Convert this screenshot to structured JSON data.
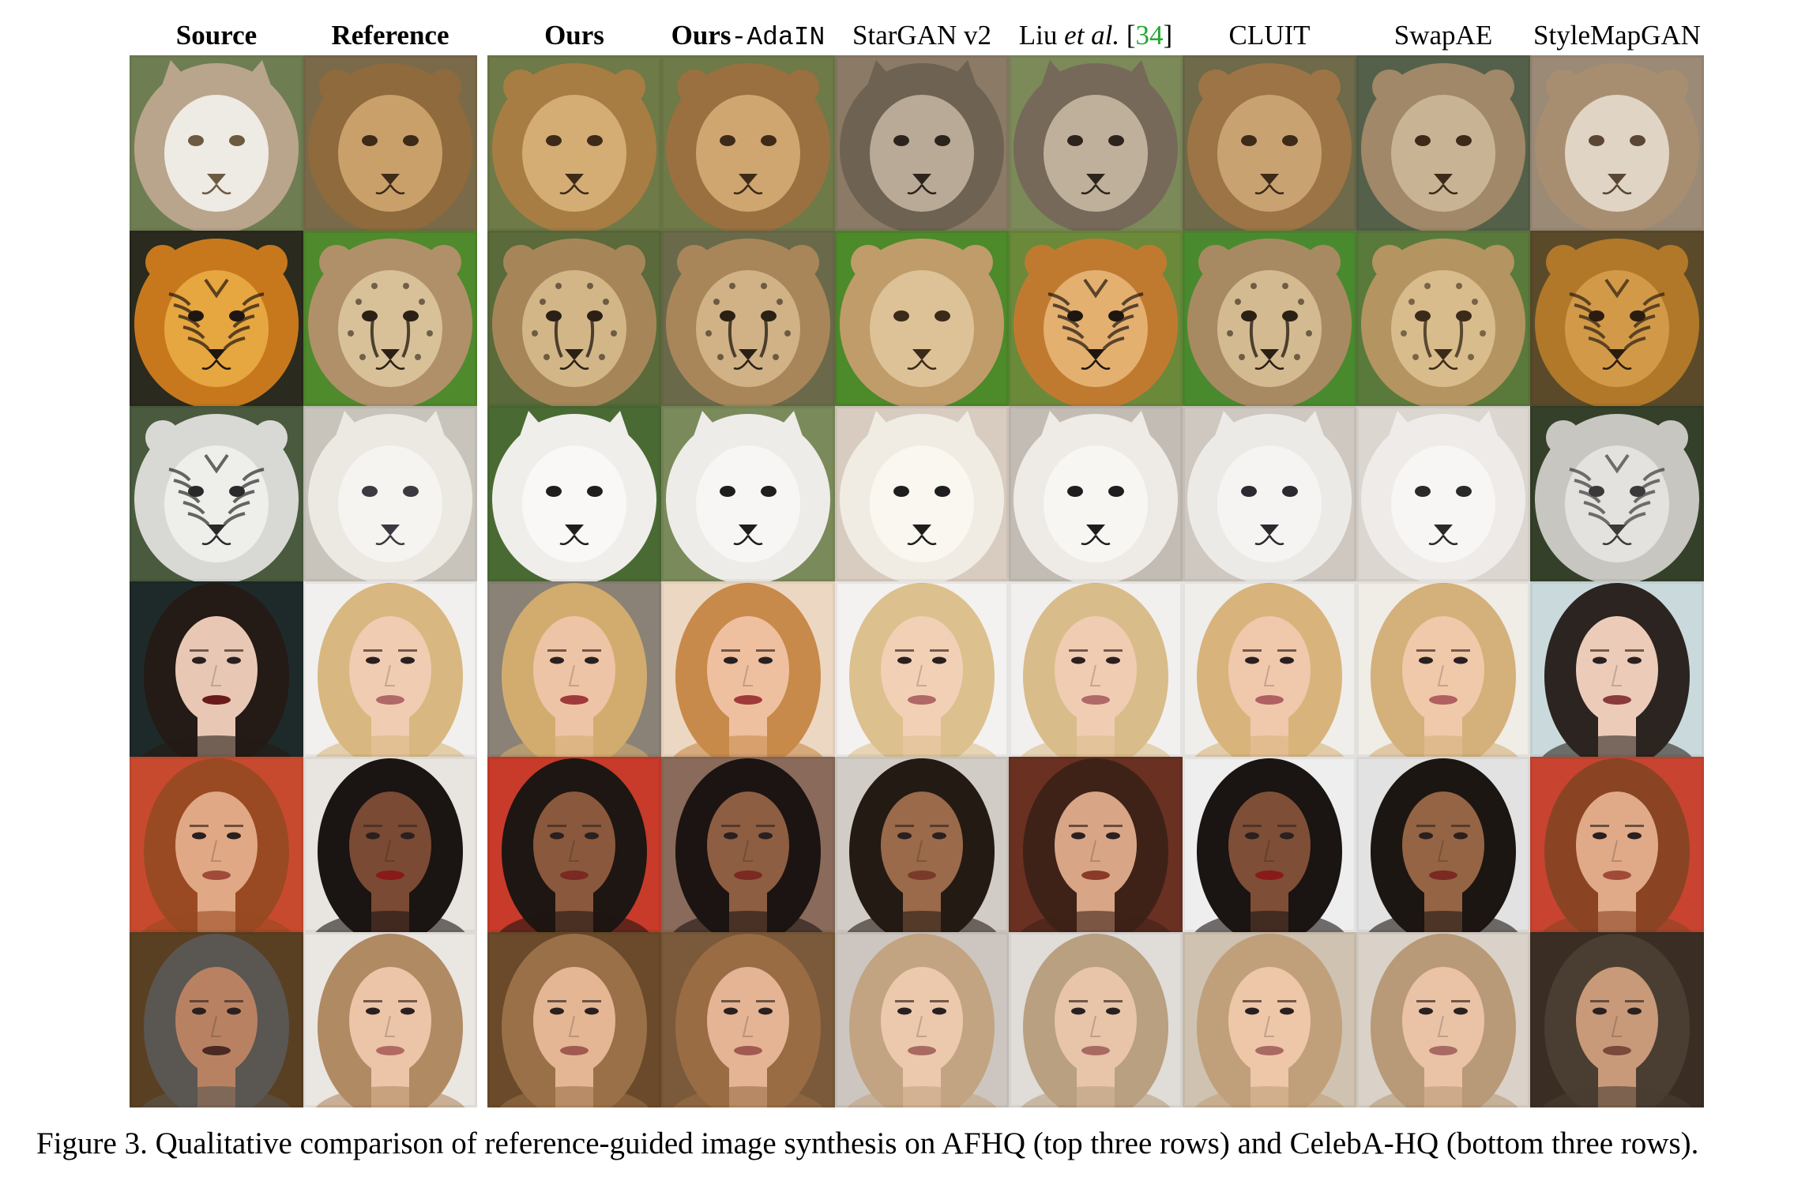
{
  "figure": {
    "headers": [
      {
        "id": "source",
        "parts": [
          {
            "text": "Source",
            "style": "bold"
          }
        ]
      },
      {
        "id": "reference",
        "parts": [
          {
            "text": "Reference",
            "style": "bold"
          }
        ]
      },
      {
        "id": "ours",
        "parts": [
          {
            "text": "Ours",
            "style": "bold"
          }
        ]
      },
      {
        "id": "ours-adain",
        "parts": [
          {
            "text": "Ours",
            "style": "bold"
          },
          {
            "text": "-AdaIN",
            "style": "mono"
          }
        ]
      },
      {
        "id": "stargan-v2",
        "parts": [
          {
            "text": "StarGAN v2",
            "style": "normal"
          }
        ]
      },
      {
        "id": "liu-et-al",
        "parts": [
          {
            "text": "Liu ",
            "style": "normal"
          },
          {
            "text": "et al.",
            "style": "italic"
          },
          {
            "text": " [",
            "style": "normal"
          },
          {
            "text": "34",
            "style": "cite"
          },
          {
            "text": "]",
            "style": "normal"
          }
        ]
      },
      {
        "id": "cluit",
        "parts": [
          {
            "text": "CLUIT",
            "style": "normal"
          }
        ]
      },
      {
        "id": "swapae",
        "parts": [
          {
            "text": "SwapAE",
            "style": "normal"
          }
        ]
      },
      {
        "id": "stylemapgan",
        "parts": [
          {
            "text": "StyleMapGAN",
            "style": "normal"
          }
        ]
      }
    ],
    "rows": [
      {
        "id": "row-1",
        "dataset": "AFHQ",
        "cells": [
          {
            "subject": "cat",
            "bg": "#6f7e52",
            "fur": "#b9a58c",
            "face": "#eeeae4",
            "feature": "#6b5a40"
          },
          {
            "subject": "lion",
            "bg": "#7a6a4a",
            "fur": "#8e6a3c",
            "face": "#c9a06a",
            "feature": "#3e2a18"
          },
          {
            "subject": "lion",
            "bg": "#6e7a48",
            "fur": "#a77d44",
            "face": "#d3ad74",
            "feature": "#3e2a18"
          },
          {
            "subject": "lion",
            "bg": "#6e7a48",
            "fur": "#9a7040",
            "face": "#cfa670",
            "feature": "#3e2a18"
          },
          {
            "subject": "wolf",
            "bg": "#8a7a66",
            "fur": "#6e6252",
            "face": "#b8aa96",
            "feature": "#2c241c"
          },
          {
            "subject": "wolf",
            "bg": "#7c8a5a",
            "fur": "#76695a",
            "face": "#beb09a",
            "feature": "#2c241c"
          },
          {
            "subject": "lion",
            "bg": "#6e6a4a",
            "fur": "#9c7446",
            "face": "#c9a271",
            "feature": "#3e2a18"
          },
          {
            "subject": "lion",
            "bg": "#55604a",
            "fur": "#a08868",
            "face": "#c8b495",
            "feature": "#3e2a18"
          },
          {
            "subject": "lion",
            "bg": "#9a8a76",
            "fur": "#a88e70",
            "face": "#e0d4c4",
            "feature": "#5a4632"
          }
        ]
      },
      {
        "id": "row-2",
        "dataset": "AFHQ",
        "cells": [
          {
            "subject": "tiger",
            "bg": "#2a2a1e",
            "fur": "#c8781c",
            "face": "#e6a640",
            "feature": "#1e1610"
          },
          {
            "subject": "cheetah",
            "bg": "#4f8a2c",
            "fur": "#b09068",
            "face": "#d8c098",
            "feature": "#2a2016"
          },
          {
            "subject": "cheetah",
            "bg": "#5a6a3a",
            "fur": "#a68658",
            "face": "#d2b688",
            "feature": "#2a2016"
          },
          {
            "subject": "cheetah",
            "bg": "#6a6a4a",
            "fur": "#a8865a",
            "face": "#d0b286",
            "feature": "#2a2016"
          },
          {
            "subject": "lion",
            "bg": "#4c8a2a",
            "fur": "#c09c6a",
            "face": "#dcc296",
            "feature": "#3a2a1a"
          },
          {
            "subject": "tiger",
            "bg": "#6a8a3a",
            "fur": "#c07a30",
            "face": "#e4b070",
            "feature": "#1e1610"
          },
          {
            "subject": "cheetah",
            "bg": "#4a8a2e",
            "fur": "#a88a62",
            "face": "#d4ba90",
            "feature": "#2a2016"
          },
          {
            "subject": "cheetah",
            "bg": "#5a7a3c",
            "fur": "#b49460",
            "face": "#d8bc8c",
            "feature": "#3a2a1a"
          },
          {
            "subject": "tiger",
            "bg": "#5a4a2a",
            "fur": "#b07828",
            "face": "#d29a48",
            "feature": "#2a1c10"
          }
        ]
      },
      {
        "id": "row-3",
        "dataset": "AFHQ",
        "cells": [
          {
            "subject": "white-tiger",
            "bg": "#4a5a3e",
            "fur": "#d8d8d4",
            "face": "#eeeeea",
            "feature": "#2a2a2a"
          },
          {
            "subject": "dog",
            "bg": "#c8c4bc",
            "fur": "#ece8e2",
            "face": "#f6f4f0",
            "feature": "#3a3a40"
          },
          {
            "subject": "dog",
            "bg": "#4a6a34",
            "fur": "#f0eeea",
            "face": "#faf8f6",
            "feature": "#1e1e1e"
          },
          {
            "subject": "dog",
            "bg": "#7a8a5a",
            "fur": "#eeece8",
            "face": "#f8f6f4",
            "feature": "#1e1e1e"
          },
          {
            "subject": "dog",
            "bg": "#d8ccc0",
            "fur": "#f0ece4",
            "face": "#faf6f0",
            "feature": "#1e1e1e"
          },
          {
            "subject": "dog",
            "bg": "#c2bcb4",
            "fur": "#eeebe6",
            "face": "#f8f6f2",
            "feature": "#1e1e1e"
          },
          {
            "subject": "dog",
            "bg": "#cfc8c0",
            "fur": "#eceae6",
            "face": "#f6f4f2",
            "feature": "#2a2a30"
          },
          {
            "subject": "dog",
            "bg": "#dcd6d0",
            "fur": "#efebe8",
            "face": "#f8f6f4",
            "feature": "#2a2a2a"
          },
          {
            "subject": "white-tiger",
            "bg": "#34402a",
            "fur": "#c8c6c0",
            "face": "#e4e2de",
            "feature": "#3a3a3a"
          }
        ]
      },
      {
        "id": "row-4",
        "dataset": "CelebA-HQ",
        "cells": [
          {
            "subject": "face-dark-hair",
            "bg": "#1e2a2a",
            "fur": "#241a16",
            "face": "#e8c8b4",
            "feature": "#6a1a1a"
          },
          {
            "subject": "face-blonde",
            "bg": "#f2f0ee",
            "fur": "#d8b880",
            "face": "#f0ccb2",
            "feature": "#b06868"
          },
          {
            "subject": "face-blonde",
            "bg": "#8a8276",
            "fur": "#d2ac6e",
            "face": "#eec4a6",
            "feature": "#a03a3a"
          },
          {
            "subject": "face-blonde",
            "bg": "#ecd8c2",
            "fur": "#c88a4a",
            "face": "#eec0a0",
            "feature": "#a03a3a"
          },
          {
            "subject": "face-blonde",
            "bg": "#f4f2f0",
            "fur": "#dcc08e",
            "face": "#f2d0b6",
            "feature": "#b06868"
          },
          {
            "subject": "face-blonde",
            "bg": "#f2f0ee",
            "fur": "#d8bc8a",
            "face": "#f0ccb2",
            "feature": "#b06868"
          },
          {
            "subject": "face-blonde",
            "bg": "#f0eeea",
            "fur": "#d8b47c",
            "face": "#f0c8ac",
            "feature": "#b06060"
          },
          {
            "subject": "face-blonde",
            "bg": "#f0ece6",
            "fur": "#d4b07a",
            "face": "#f0c8aa",
            "feature": "#b06060"
          },
          {
            "subject": "face-dark-hair",
            "bg": "#cadadc",
            "fur": "#2c2420",
            "face": "#ecccb8",
            "feature": "#8a3a3a"
          }
        ]
      },
      {
        "id": "row-5",
        "dataset": "CelebA-HQ",
        "cells": [
          {
            "subject": "face-auburn",
            "bg": "#c84a2e",
            "fur": "#9a4a22",
            "face": "#e0a884",
            "feature": "#a04a3a"
          },
          {
            "subject": "face-dark-hair",
            "bg": "#e8e4e0",
            "fur": "#1a1412",
            "face": "#7a4a34",
            "feature": "#8a1a1a"
          },
          {
            "subject": "face-dark-hair",
            "bg": "#c83a2a",
            "fur": "#1e1612",
            "face": "#8a583c",
            "feature": "#7a2a22"
          },
          {
            "subject": "face-dark-hair",
            "bg": "#8a6a5a",
            "fur": "#1c1412",
            "face": "#8e5e42",
            "feature": "#7a2a22"
          },
          {
            "subject": "face-dark-hair",
            "bg": "#d2ccc6",
            "fur": "#241a14",
            "face": "#9a6a4a",
            "feature": "#7a3a2a"
          },
          {
            "subject": "face-brown-hair",
            "bg": "#6a3022",
            "fur": "#3e2218",
            "face": "#d8a686",
            "feature": "#8a3a2a"
          },
          {
            "subject": "face-dark-hair",
            "bg": "#eeeeee",
            "fur": "#1a1412",
            "face": "#7e4e36",
            "feature": "#8a1a1a"
          },
          {
            "subject": "face-dark-hair",
            "bg": "#e2e2e2",
            "fur": "#1c1612",
            "face": "#946444",
            "feature": "#7a2a22"
          },
          {
            "subject": "face-auburn",
            "bg": "#c84430",
            "fur": "#8a4424",
            "face": "#e0aa88",
            "feature": "#a04a3a"
          }
        ]
      },
      {
        "id": "row-6",
        "dataset": "CelebA-HQ",
        "cells": [
          {
            "subject": "face-older-man",
            "bg": "#5a4022",
            "fur": "#5a5652",
            "face": "#b88262",
            "feature": "#4a2a22"
          },
          {
            "subject": "face-light-brown",
            "bg": "#eae6e2",
            "fur": "#b08a62",
            "face": "#ecc4a8",
            "feature": "#b06a62"
          },
          {
            "subject": "face-light-brown",
            "bg": "#6a4a2a",
            "fur": "#9a7048",
            "face": "#e4b694",
            "feature": "#a05a50"
          },
          {
            "subject": "face-light-brown",
            "bg": "#7a5a3a",
            "fur": "#9a6c44",
            "face": "#e4b494",
            "feature": "#a05a50"
          },
          {
            "subject": "face-light-brown",
            "bg": "#cdc6c0",
            "fur": "#c2a482",
            "face": "#ecc8ac",
            "feature": "#a86a62"
          },
          {
            "subject": "face-light-brown",
            "bg": "#e0dcd8",
            "fur": "#b8a080",
            "face": "#e8c4a8",
            "feature": "#a86a62"
          },
          {
            "subject": "face-light-brown",
            "bg": "#cfc2b0",
            "fur": "#c0a07a",
            "face": "#eec6a8",
            "feature": "#a86a62"
          },
          {
            "subject": "face-light-brown",
            "bg": "#dad2c8",
            "fur": "#b89a78",
            "face": "#eac2a6",
            "feature": "#a86a62"
          },
          {
            "subject": "face-light-brown",
            "bg": "#3a2e24",
            "fur": "#4a3e32",
            "face": "#c89a7a",
            "feature": "#7a4a3a"
          }
        ]
      }
    ],
    "caption": "Figure 3. Qualitative comparison of reference-guided image synthesis on AFHQ (top three rows) and CelebA-HQ (bottom three rows)."
  }
}
